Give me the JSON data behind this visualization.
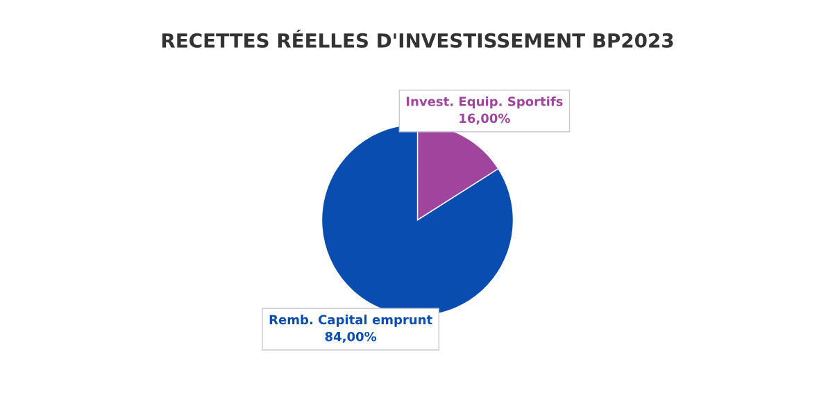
{
  "chart_data": {
    "type": "pie",
    "title": "RECETTES RÉELLES D'INVESTISSEMENT BP2023",
    "categories": [
      "Invest. Equip. Sportifs",
      "Remb. Capital emprunt"
    ],
    "values": [
      16,
      84
    ],
    "value_labels": [
      "16,00%",
      "84,00%"
    ],
    "colors": [
      "#a0449e",
      "#0a4db0"
    ],
    "legend": false
  }
}
